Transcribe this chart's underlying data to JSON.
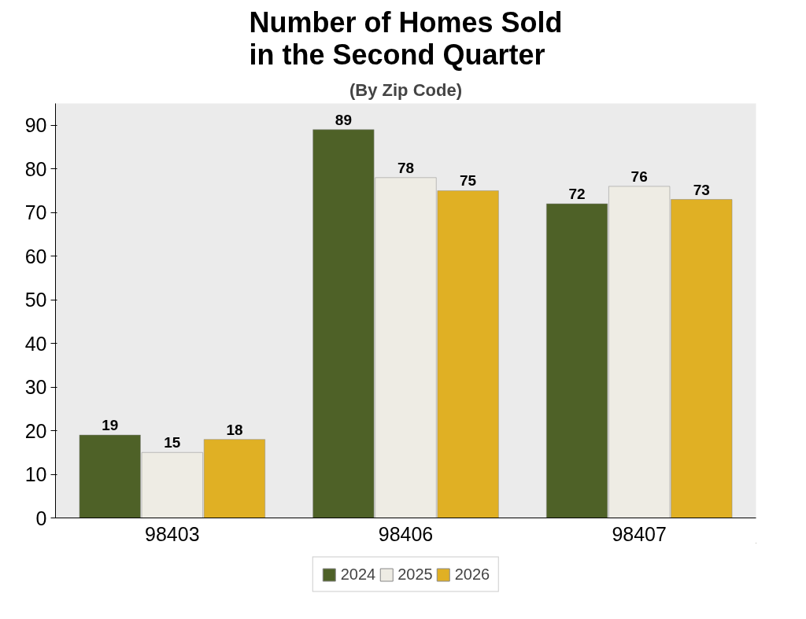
{
  "chart_data": {
    "type": "bar",
    "title": "Number of Homes Sold\nin the Second Quarter",
    "subtitle": "(By Zip Code)",
    "categories": [
      "98403",
      "98406",
      "98407"
    ],
    "series": [
      {
        "name": "2024",
        "color": "#4e6127",
        "values": [
          19,
          89,
          72
        ]
      },
      {
        "name": "2025",
        "color": "#eeece4",
        "values": [
          15,
          78,
          76
        ]
      },
      {
        "name": "2026",
        "color": "#e0b024",
        "values": [
          18,
          75,
          73
        ]
      }
    ],
    "ylim": [
      0,
      95
    ],
    "yticks": [
      0,
      10,
      20,
      30,
      40,
      50,
      60,
      70,
      80,
      90
    ],
    "data_labels": true,
    "grid": false,
    "legend": "bottom"
  }
}
